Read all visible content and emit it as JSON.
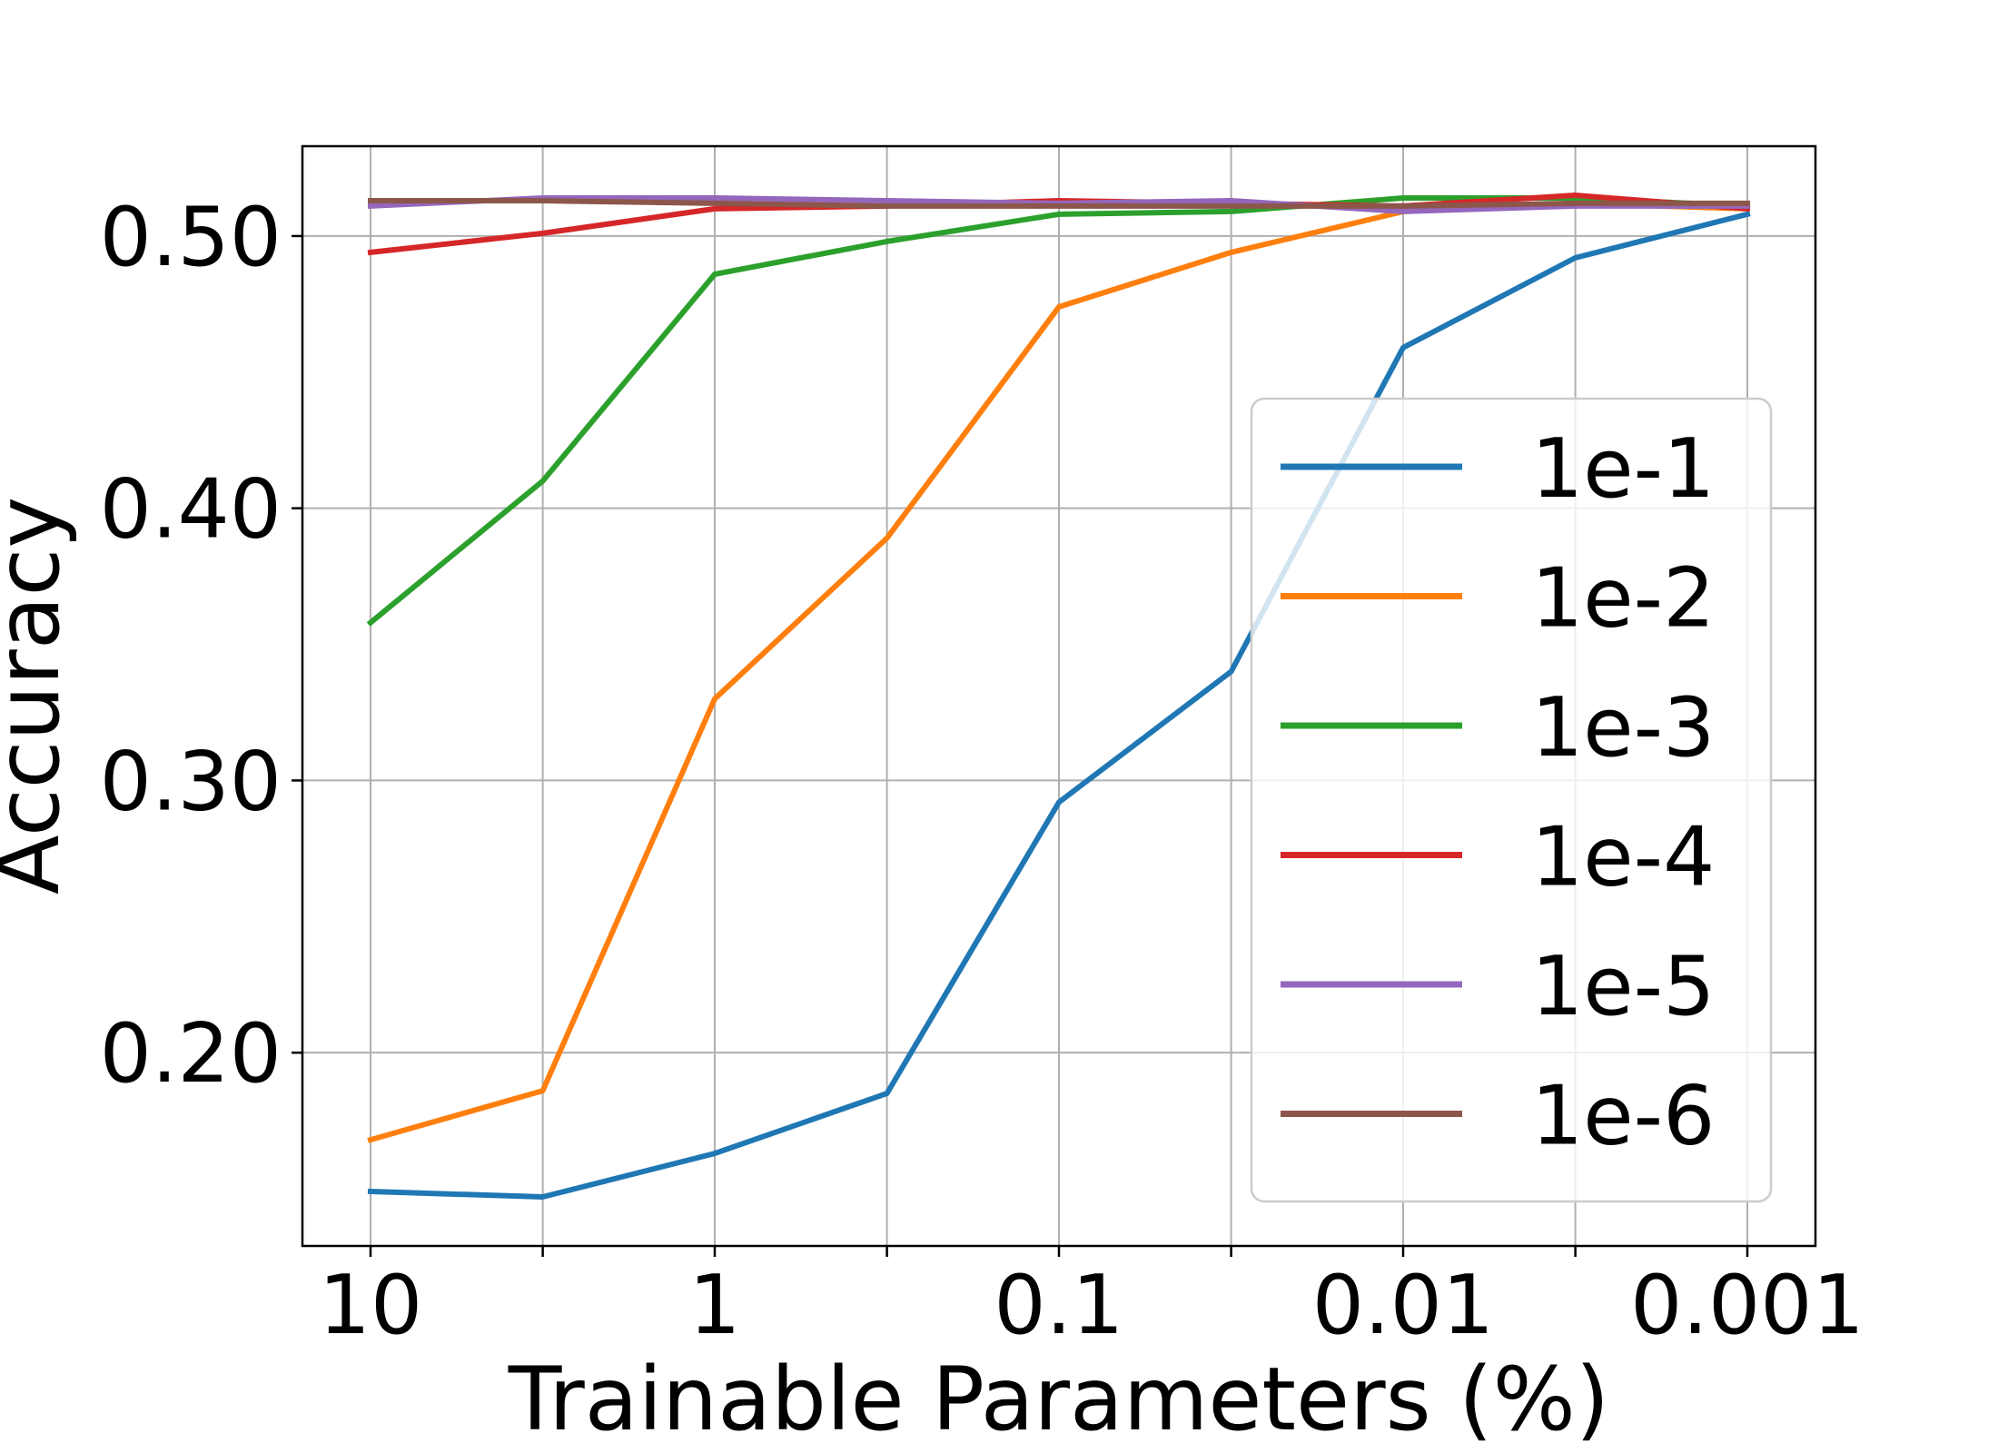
{
  "chart_data": {
    "type": "line",
    "xlabel": "Trainable Parameters (%)",
    "ylabel": "Accuracy",
    "x_scale": "log",
    "x_direction": "descending",
    "x": [
      10,
      3.16,
      1,
      0.316,
      0.1,
      0.0316,
      0.01,
      0.00316,
      0.001
    ],
    "x_ticks": [
      {
        "value": 10,
        "label": "10"
      },
      {
        "value": 3.16,
        "label": ""
      },
      {
        "value": 1,
        "label": "1"
      },
      {
        "value": 0.316,
        "label": ""
      },
      {
        "value": 0.1,
        "label": "0.1"
      },
      {
        "value": 0.0316,
        "label": ""
      },
      {
        "value": 0.01,
        "label": "0.01"
      },
      {
        "value": 0.00316,
        "label": ""
      },
      {
        "value": 0.001,
        "label": "0.001"
      }
    ],
    "ylim": [
      0.129,
      0.533
    ],
    "y_ticks": [
      {
        "value": 0.2,
        "label": "0.20"
      },
      {
        "value": 0.3,
        "label": "0.30"
      },
      {
        "value": 0.4,
        "label": "0.40"
      },
      {
        "value": 0.5,
        "label": "0.50"
      }
    ],
    "grid": true,
    "legend_position": "center-right",
    "series": [
      {
        "name": "1e-1",
        "color": "#1f77b4",
        "values": [
          0.149,
          0.147,
          0.163,
          0.185,
          0.292,
          0.34,
          0.459,
          0.492,
          0.508
        ]
      },
      {
        "name": "1e-2",
        "color": "#ff7f0e",
        "values": [
          0.168,
          0.186,
          0.33,
          0.389,
          0.474,
          0.494,
          0.509,
          0.512,
          0.51
        ]
      },
      {
        "name": "1e-3",
        "color": "#2ca02c",
        "values": [
          0.358,
          0.41,
          0.486,
          0.498,
          0.508,
          0.509,
          0.514,
          0.514,
          0.511
        ]
      },
      {
        "name": "1e-4",
        "color": "#d62728",
        "values": [
          0.494,
          0.501,
          0.51,
          0.511,
          0.513,
          0.512,
          0.511,
          0.515,
          0.51
        ]
      },
      {
        "name": "1e-5",
        "color": "#9467bd",
        "values": [
          0.511,
          0.514,
          0.514,
          0.513,
          0.512,
          0.513,
          0.509,
          0.511,
          0.511
        ]
      },
      {
        "name": "1e-6",
        "color": "#8c564b",
        "values": [
          0.513,
          0.513,
          0.512,
          0.511,
          0.511,
          0.511,
          0.511,
          0.512,
          0.512
        ]
      }
    ]
  }
}
